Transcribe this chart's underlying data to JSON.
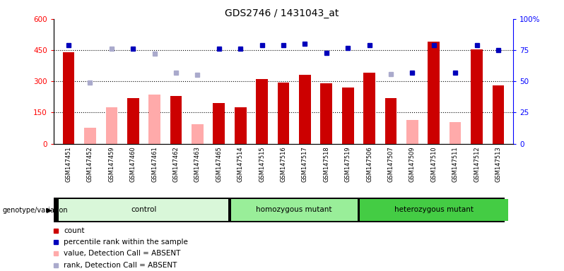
{
  "title": "GDS2746 / 1431043_at",
  "samples": [
    "GSM147451",
    "GSM147452",
    "GSM147459",
    "GSM147460",
    "GSM147461",
    "GSM147462",
    "GSM147463",
    "GSM147465",
    "GSM147514",
    "GSM147515",
    "GSM147516",
    "GSM147517",
    "GSM147518",
    "GSM147519",
    "GSM147506",
    "GSM147507",
    "GSM147509",
    "GSM147510",
    "GSM147511",
    "GSM147512",
    "GSM147513"
  ],
  "count_values": [
    440,
    0,
    0,
    220,
    0,
    230,
    0,
    195,
    175,
    310,
    295,
    330,
    290,
    270,
    340,
    220,
    0,
    490,
    0,
    455,
    280
  ],
  "count_absent": [
    false,
    true,
    true,
    false,
    true,
    false,
    true,
    false,
    false,
    false,
    false,
    false,
    false,
    false,
    false,
    false,
    true,
    false,
    true,
    false,
    false
  ],
  "absent_count_values": [
    0,
    75,
    175,
    0,
    235,
    0,
    95,
    0,
    0,
    0,
    0,
    0,
    0,
    0,
    0,
    0,
    115,
    0,
    105,
    0,
    0
  ],
  "rank_values": [
    79,
    0,
    0,
    76,
    0,
    0,
    0,
    76,
    76,
    79,
    79,
    80,
    73,
    77,
    79,
    0,
    57,
    79,
    57,
    79,
    75
  ],
  "rank_absent": [
    false,
    true,
    true,
    false,
    true,
    true,
    true,
    false,
    false,
    false,
    false,
    false,
    false,
    false,
    false,
    true,
    false,
    false,
    false,
    false,
    false
  ],
  "absent_rank_values": [
    0,
    49,
    76,
    0,
    72,
    57,
    55,
    0,
    0,
    0,
    0,
    0,
    0,
    0,
    0,
    56,
    0,
    0,
    0,
    0,
    0
  ],
  "groups": [
    {
      "label": "control",
      "start": 0,
      "end": 8,
      "color": "#d9f7d9"
    },
    {
      "label": "homozygous mutant",
      "start": 8,
      "end": 14,
      "color": "#99ee99"
    },
    {
      "label": "heterozygous mutant",
      "start": 14,
      "end": 21,
      "color": "#44cc44"
    }
  ],
  "ylim_left": [
    0,
    600
  ],
  "ylim_right": [
    0,
    100
  ],
  "yticks_left": [
    0,
    150,
    300,
    450,
    600
  ],
  "ytick_labels_left": [
    "0",
    "150",
    "300",
    "450",
    "600"
  ],
  "yticks_right": [
    0,
    25,
    50,
    75,
    100
  ],
  "ytick_labels_right": [
    "0",
    "25",
    "50",
    "75",
    "100%"
  ],
  "hlines": [
    150,
    300,
    450
  ],
  "bar_color_present": "#cc0000",
  "bar_color_absent": "#ffaaaa",
  "rank_color_present": "#0000bb",
  "rank_color_absent": "#aaaacc",
  "bar_width": 0.55,
  "background_color": "#ffffff",
  "xtick_bg_color": "#cccccc",
  "legend_items": [
    {
      "color": "#cc0000",
      "marker": "s",
      "label": "count"
    },
    {
      "color": "#0000bb",
      "marker": "s",
      "label": "percentile rank within the sample"
    },
    {
      "color": "#ffaaaa",
      "marker": "s",
      "label": "value, Detection Call = ABSENT"
    },
    {
      "color": "#aaaacc",
      "marker": "s",
      "label": "rank, Detection Call = ABSENT"
    }
  ]
}
